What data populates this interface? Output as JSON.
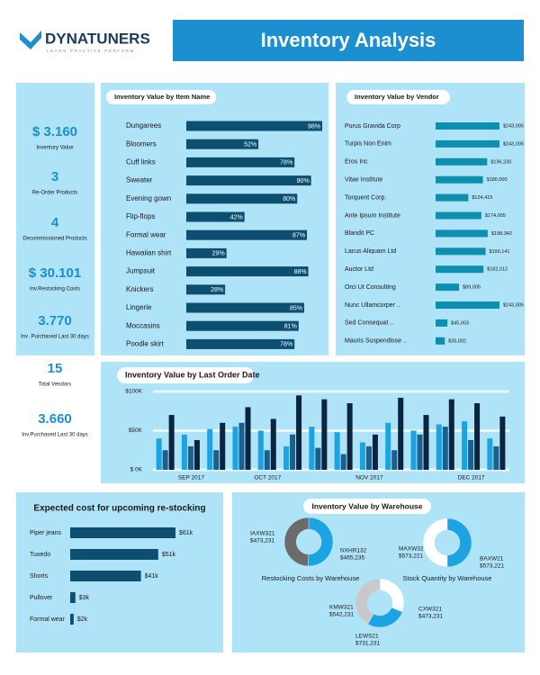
{
  "header": {
    "brand": "DYNATUNERS",
    "tagline": "LEARN PRACTICE PERFORM",
    "title": "Inventory Analysis"
  },
  "kpis": [
    {
      "value": "$ 3.160",
      "label": "Inventory Value"
    },
    {
      "value": "3",
      "label": "Re-Order Products"
    },
    {
      "value": "4",
      "label": "Decommissioned Products"
    },
    {
      "value": "$ 30.101",
      "label": "Inv.Restocking Costs"
    },
    {
      "value": "3.770",
      "label": "Inv .Purchased Last 30 days"
    },
    {
      "value": "15",
      "label": "Total Vendors"
    },
    {
      "value": "3.660",
      "label": "Inv.Purchased Last 30 days"
    }
  ],
  "chart_data": [
    {
      "type": "bar",
      "horizontal": true,
      "title": "Inventory Value by Item Name",
      "color": "#0d4f70",
      "categories": [
        "Dungarees",
        "Bloomers",
        "Cuff links",
        "Sweater",
        "Evening gown",
        "Flip-flops",
        "Formal wear",
        "Hawaiian shirt",
        "Jumpsuit",
        "Knickers",
        "Lingerie",
        "Moccasins",
        "Poodle skirt"
      ],
      "values": [
        98,
        52,
        78,
        90,
        80,
        42,
        87,
        29,
        88,
        28,
        85,
        81,
        78
      ],
      "value_labels": [
        "98%",
        "52%",
        "78%",
        "90%",
        "80%",
        "42%",
        "87%",
        "29%",
        "88%",
        "28%",
        "85%",
        "81%",
        "78%"
      ]
    },
    {
      "type": "bar",
      "horizontal": true,
      "title": "Inventory Value by Vendor",
      "color": "#0f8fb0",
      "categories": [
        "Purus Gravida Corp",
        "Turpis Non Enim",
        "Eros Inc",
        "Vitae Institute",
        "Torquent Corp.",
        "Ante Ipsum Institute",
        "Blandit PC",
        "Lacus Aliquam Ltd",
        "Auctor Ltd",
        "Orci Ut Consulting",
        "Nunc Ullamcorper ..",
        "Sed Consequat ..",
        "Mauris Suspendisse .."
      ],
      "values": [
        243005,
        243005,
        196230,
        180000,
        124415,
        174005,
        198342,
        190141,
        182012,
        89005,
        243005,
        45003,
        35002
      ],
      "value_labels": [
        "$243,005",
        "$243,005",
        "$196,230",
        "$180,000",
        "$124,415",
        "$174,005",
        "$198,342",
        "$190,141",
        "$182,012",
        "$89,005",
        "$243,005",
        "$45,003",
        "$35,002"
      ]
    },
    {
      "type": "bar",
      "title": "Inventory Value by Last Order Date",
      "categories": [
        null,
        "SEP 2017",
        null,
        null,
        "OCT 2017",
        null,
        null,
        null,
        "NOV 2017",
        null,
        null,
        null,
        "DEC 2017",
        null
      ],
      "series": [
        {
          "color": "#1ba3e2",
          "values": [
            40000,
            45000,
            52000,
            55000,
            50000,
            30000,
            55000,
            48000,
            35000,
            60000,
            50000,
            58000,
            62000,
            40000
          ]
        },
        {
          "color": "#1b5f8f",
          "values": [
            25000,
            30000,
            25000,
            60000,
            25000,
            45000,
            28000,
            20000,
            30000,
            25000,
            45000,
            55000,
            38000,
            30000
          ]
        },
        {
          "color": "#0b2540",
          "values": [
            70000,
            38000,
            60000,
            80000,
            65000,
            95000,
            90000,
            85000,
            45000,
            92000,
            70000,
            90000,
            85000,
            68000
          ]
        }
      ],
      "ylim": [
        0,
        100000
      ],
      "yticks": [
        {
          "value": 0,
          "label": "$ 0K"
        },
        {
          "value": 50000,
          "label": "$50K"
        },
        {
          "value": 100000,
          "label": "$100K"
        }
      ],
      "grid": true
    },
    {
      "type": "bar",
      "horizontal": true,
      "title": "Expected cost for upcoming re-stocking",
      "color": "#0d4f70",
      "categories": [
        "Piper jeans",
        "Tuxedo",
        "Shorts",
        "Pullover",
        "Formal wear"
      ],
      "values": [
        61,
        51,
        41,
        3,
        2
      ],
      "value_labels": [
        "$61k",
        "$51k",
        "$41k",
        "$3k",
        "$2k"
      ]
    },
    {
      "type": "donut",
      "title": "Inventory Value by Warehouse",
      "pies": [
        {
          "subtitle": "Restocking Costs by Warehouse",
          "categories": [
            "IAXW321",
            "NXHR132"
          ],
          "values": [
            473231,
            465235
          ],
          "value_labels": [
            "$473,231",
            "$465,235"
          ],
          "colors": [
            "#1ba3e2",
            "#6b6b6b"
          ]
        },
        {
          "subtitle": "Stock Quantity by Warehouse",
          "categories": [
            "MAXW321",
            "BAXW21"
          ],
          "values": [
            573221,
            573221
          ],
          "value_labels": [
            "$573,221",
            "$573,221"
          ],
          "colors": [
            "#1ba3e2",
            "#ffffff"
          ]
        },
        {
          "categories": [
            "KMW321",
            "CXW321",
            "LEWS21"
          ],
          "values": [
            542231,
            473231,
            731231
          ],
          "value_labels": [
            "$542,231",
            "$473,231",
            "$731,231"
          ],
          "colors": [
            "#ffffff",
            "#1ba3e2",
            "#c9c9c9"
          ]
        }
      ]
    }
  ]
}
